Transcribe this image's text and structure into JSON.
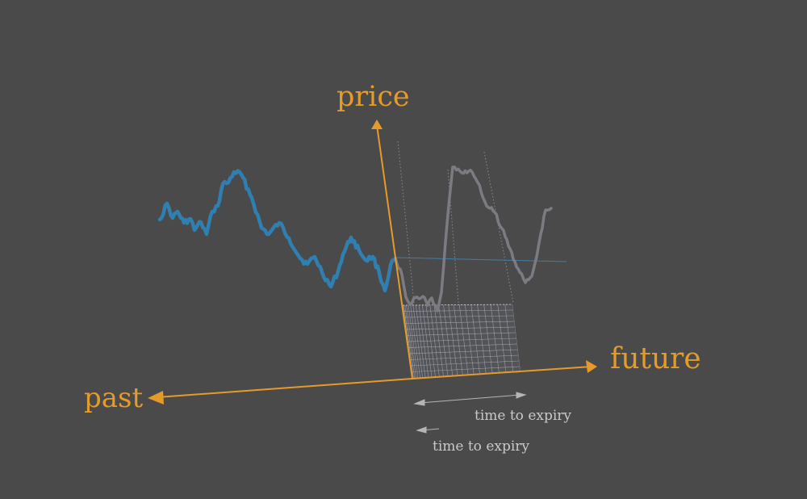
{
  "labels": {
    "price": "price",
    "future": "future",
    "past": "past",
    "expiry_1": "time to expiry",
    "expiry_2": "time to expiry"
  },
  "colors": {
    "axis": "#e59b2a",
    "history": "#2f7fb0",
    "projection": "#7d7b82",
    "background": "#4a4a4a",
    "grid": "#b9b9c4",
    "label": "#c9c9c9"
  },
  "diagram_description": {
    "axes": [
      "price",
      "future",
      "past"
    ],
    "history_series_color_name": "blue",
    "projected_paths_color_name": "grey"
  }
}
